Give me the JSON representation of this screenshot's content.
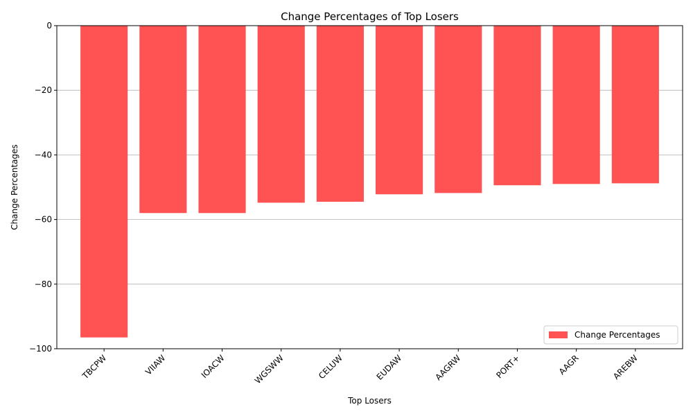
{
  "chart_data": {
    "type": "bar",
    "title": "Change Percentages of Top Losers",
    "xlabel": "Top Losers",
    "ylabel": "Change Percentages",
    "categories": [
      "TBCPW",
      "VIIAW",
      "IOACW",
      "WGSWW",
      "CELUW",
      "EUDAW",
      "AAGRW",
      "PORT+",
      "AAGR",
      "AREBW"
    ],
    "series": [
      {
        "name": "Change Percentages",
        "values": [
          -96.5,
          -58.0,
          -58.0,
          -54.8,
          -54.5,
          -52.2,
          -51.8,
          -49.4,
          -49.0,
          -48.8
        ],
        "color": "#ff5252"
      }
    ],
    "ylim": [
      -100,
      0
    ],
    "yticks": [
      0,
      -20,
      -40,
      -60,
      -80,
      -100
    ],
    "ytick_labels": [
      "0",
      "−20",
      "−40",
      "−60",
      "−80",
      "−100"
    ],
    "grid": "y",
    "legend_position": "lower-right",
    "tick_rotation": 45
  }
}
